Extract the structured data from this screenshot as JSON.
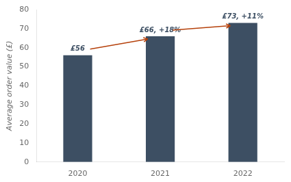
{
  "chart_data": {
    "type": "bar",
    "categories": [
      "2020",
      "2021",
      "2022"
    ],
    "values": [
      56,
      66,
      73
    ],
    "value_labels": [
      "£56",
      "£66, +18%",
      "£73, +11%"
    ],
    "data_labels": true,
    "color": "#3d4f63",
    "ylabel": "Average order value (£)",
    "ylim": [
      0,
      80
    ],
    "yticks": [
      0,
      10,
      20,
      30,
      40,
      50,
      60,
      70,
      80
    ],
    "grid": false,
    "annotations": [
      {
        "type": "arrow",
        "from": "2020",
        "to": "2021",
        "color": "#b5400a"
      },
      {
        "type": "arrow",
        "from": "2021",
        "to": "2022",
        "color": "#b5400a"
      }
    ]
  }
}
